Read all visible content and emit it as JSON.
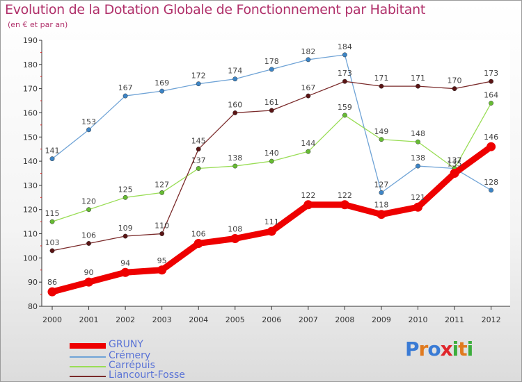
{
  "title": "Evolution de la Dotation Globale de Fonctionnement par Habitant",
  "subtitle": "(en € et par an)",
  "logo": {
    "text": "Proxiti",
    "letters": [
      "P",
      "r",
      "o",
      "x",
      "i",
      "t",
      "i"
    ],
    "colors": [
      "#3a7bd5",
      "#e07a1f",
      "#3a7bd5",
      "#e0262c",
      "#3cad3c",
      "#e07a1f",
      "#3cad3c"
    ]
  },
  "chart_data": {
    "type": "line",
    "title": "Evolution de la Dotation Globale de Fonctionnement par Habitant",
    "ylabel": "(en € et par an)",
    "xlabel": "",
    "categories": [
      "2000",
      "2001",
      "2002",
      "2003",
      "2004",
      "2005",
      "2006",
      "2007",
      "2008",
      "2009",
      "2010",
      "2011",
      "2012"
    ],
    "ylim": [
      80,
      190
    ],
    "yticks": [
      "80",
      "90",
      "100",
      "110",
      "120",
      "130",
      "140",
      "150",
      "160",
      "170",
      "180",
      "190"
    ],
    "grid": false,
    "legend_position": "bottom-left",
    "series": [
      {
        "name": "GRUNY",
        "color": "#ee0000",
        "bold": true,
        "values": [
          86,
          90,
          94,
          95,
          106,
          108,
          111,
          122,
          122,
          118,
          121,
          135,
          146
        ],
        "labels": [
          "86",
          "90",
          "94",
          "95",
          "106",
          "108",
          "111",
          "122",
          "122",
          "118",
          "121",
          "135",
          "146"
        ]
      },
      {
        "name": "Crémery",
        "color": "#6fa3d6",
        "dot": "#3d85c6",
        "values": [
          141,
          153,
          167,
          169,
          172,
          174,
          178,
          182,
          184,
          127,
          138,
          137,
          128
        ],
        "labels": [
          "141",
          "153",
          "167",
          "169",
          "172",
          "174",
          "178",
          "182",
          "184",
          "127",
          "138",
          "137",
          "128"
        ]
      },
      {
        "name": "Carrépuis",
        "color": "#99dd55",
        "dot": "#66bb33",
        "values": [
          115,
          120,
          125,
          127,
          137,
          138,
          140,
          144,
          159,
          149,
          148,
          137,
          164
        ],
        "labels": [
          "115",
          "120",
          "125",
          "127",
          "137",
          "138",
          "140",
          "144",
          "159",
          "149",
          "148",
          "137",
          "164"
        ]
      },
      {
        "name": "Liancourt-Fosse",
        "color": "#7a2a2a",
        "dot": "#5a1515",
        "values": [
          103,
          106,
          109,
          110,
          145,
          160,
          161,
          167,
          173,
          171,
          171,
          170,
          173
        ],
        "labels": [
          "103",
          "106",
          "109",
          "110",
          "145",
          "160",
          "161",
          "167",
          "173",
          "171",
          "171",
          "170",
          "173"
        ]
      }
    ]
  }
}
